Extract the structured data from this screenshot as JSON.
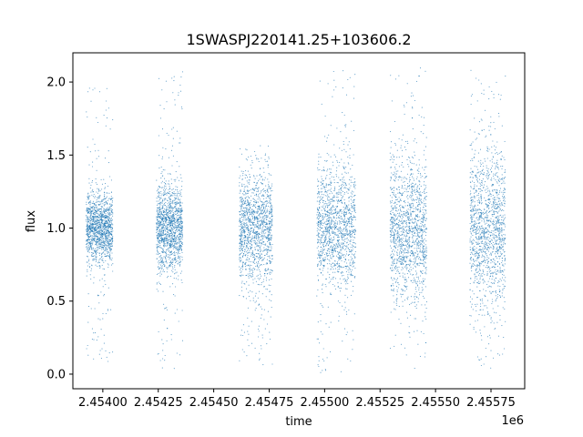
{
  "chart_data": {
    "type": "scatter",
    "title": "1SWASPJ220141.25+103606.2",
    "xlabel": "time",
    "ylabel": "flux",
    "x_offset_label": "1e6",
    "xlim": [
      2.453865,
      2.455902
    ],
    "ylim": [
      -0.1,
      2.2
    ],
    "x_ticks": [
      2.454,
      2.45425,
      2.4545,
      2.45475,
      2.455,
      2.45525,
      2.4555,
      2.45575
    ],
    "x_tick_labels": [
      "2.45400",
      "2.45425",
      "2.45450",
      "2.45475",
      "2.45500",
      "2.45525",
      "2.45550",
      "2.45575"
    ],
    "y_ticks": [
      0.0,
      0.5,
      1.0,
      1.5,
      2.0
    ],
    "y_tick_labels": [
      "0.0",
      "0.5",
      "1.0",
      "1.5",
      "2.0"
    ],
    "grid": false,
    "marker_color": "#1f77b4",
    "series": [
      {
        "observing_seasons": [
          {
            "x_start": 2.453925,
            "x_end": 2.454045,
            "flux_center": 1.0,
            "flux_min": 0.08,
            "flux_max": 1.96
          },
          {
            "x_start": 2.454242,
            "x_end": 2.45436,
            "flux_center": 1.0,
            "flux_min": 0.02,
            "flux_max": 2.08
          },
          {
            "x_start": 2.454615,
            "x_end": 2.454765,
            "flux_center": 1.0,
            "flux_min": 0.06,
            "flux_max": 1.6
          },
          {
            "x_start": 2.454965,
            "x_end": 2.45514,
            "flux_center": 1.0,
            "flux_min": 0.0,
            "flux_max": 2.1
          },
          {
            "x_start": 2.455295,
            "x_end": 2.45546,
            "flux_center": 1.0,
            "flux_min": 0.03,
            "flux_max": 2.1
          },
          {
            "x_start": 2.455655,
            "x_end": 2.455815,
            "flux_center": 1.0,
            "flux_min": 0.0,
            "flux_max": 2.1
          }
        ]
      }
    ]
  }
}
